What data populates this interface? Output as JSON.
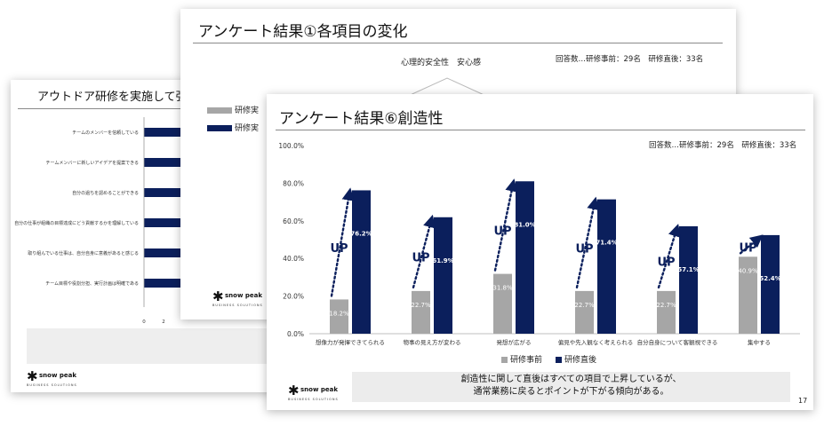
{
  "back_left": {
    "title": "アウトドア研修を実施して強",
    "items": [
      "チームのメンバーを信頼している",
      "チームメンバーに新しいアイデアを提案できる",
      "自分の過ちを認めることができる",
      "自分の仕事が組織の目標達成にどう貢献するかを理解している",
      "取り組んでいる仕事は、自分自身に意義があると感じる",
      "チーム目標や役割分担、実行計画は明確である"
    ],
    "axis_ticks": [
      "0",
      "2"
    ],
    "logo": "snow peak",
    "logo_sub": "BUSINESS SOLUTIONS"
  },
  "back_mid": {
    "title": "アンケート結果①各項目の変化",
    "subtitle": "心理的安全性　安心感",
    "respondents": "回答数…研修事前：29名　研修直後：33名",
    "legend_partial": [
      "研修実",
      "研修実"
    ],
    "logo": "snow peak",
    "logo_sub": "BUSINESS SOLUTIONS"
  },
  "front": {
    "title": "アンケート結果⑥創造性",
    "respondents": "回答数…研修事前：29名　研修直後：33名",
    "callout": [
      "創造性に関して直後はすべての項目で上昇しているが、",
      "通常業務に戻るとポイントが下がる傾向がある。"
    ],
    "page_number": "17",
    "logo": "snow peak",
    "logo_sub": "BUSINESS SOLUTIONS",
    "up_label": "UP"
  },
  "chart_data": {
    "type": "bar",
    "title": "アンケート結果⑥創造性",
    "categories": [
      "想像力が発揮できてられる",
      "物事の見え方が変わる",
      "発想が広がる",
      "偏見や先入観なく考えられる",
      "自分自身について客観視できる",
      "集中する"
    ],
    "series": [
      {
        "name": "研修事前",
        "values": [
          18.2,
          22.7,
          31.8,
          22.7,
          22.7,
          40.9
        ],
        "labels": [
          "18.2%",
          "22.7%",
          "31.8%",
          "22.7%",
          "22.7%",
          "40.9%"
        ],
        "color": "#a6a6a6"
      },
      {
        "name": "研修直後",
        "values": [
          76.2,
          61.9,
          81.0,
          71.4,
          57.1,
          52.4
        ],
        "labels": [
          "76.2%",
          "61.9%",
          "81.0%",
          "71.4%",
          "57.1%",
          "52.4%"
        ],
        "color": "#0b1f5c"
      }
    ],
    "ylim": [
      0,
      100
    ],
    "yticks": [
      "0.0%",
      "20.0%",
      "40.0%",
      "60.0%",
      "80.0%",
      "100.0%"
    ],
    "legend_position": "bottom",
    "grid": false
  }
}
